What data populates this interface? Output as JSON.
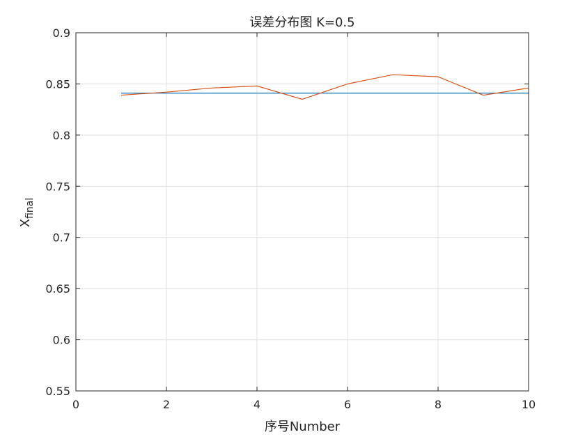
{
  "chart_data": {
    "type": "line",
    "title": "误差分布图 K=0.5",
    "xlabel": "序号Number",
    "ylabel": {
      "base": "X",
      "sub": "final"
    },
    "xlim": [
      0,
      10
    ],
    "ylim": [
      0.55,
      0.9
    ],
    "xticks": [
      0,
      2,
      4,
      6,
      8,
      10
    ],
    "yticks": [
      0.55,
      0.6,
      0.65,
      0.7,
      0.75,
      0.8,
      0.85,
      0.9
    ],
    "xtick_labels": [
      "0",
      "2",
      "4",
      "6",
      "8",
      "10"
    ],
    "ytick_labels": [
      "0.55",
      "0.6",
      "0.65",
      "0.7",
      "0.75",
      "0.8",
      "0.85",
      "0.9"
    ],
    "grid": true,
    "series": [
      {
        "color": "#0072BD",
        "x": [
          1,
          10
        ],
        "y": [
          0.841,
          0.841
        ]
      },
      {
        "color": "#D95319",
        "x": [
          1,
          2,
          3,
          4,
          5,
          6,
          7,
          8,
          9,
          10
        ],
        "y": [
          0.839,
          0.842,
          0.846,
          0.848,
          0.835,
          0.85,
          0.859,
          0.857,
          0.839,
          0.846
        ]
      }
    ]
  }
}
